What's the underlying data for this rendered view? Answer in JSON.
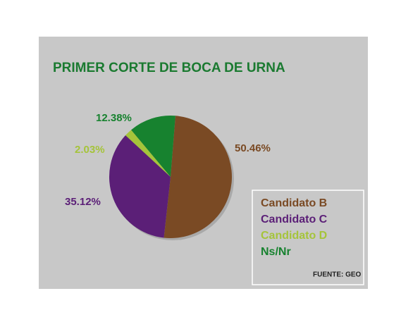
{
  "chart_data": {
    "type": "pie",
    "title": "PRIMER CORTE DE BOCA DE URNA",
    "categories": [
      "Candidato B",
      "Candidato C",
      "Candidato D",
      "Ns/Nr"
    ],
    "values": [
      50.46,
      35.12,
      2.03,
      12.38
    ],
    "value_labels": [
      "50.46%",
      "35.12%",
      "2.03%",
      "12.38%"
    ],
    "colors": [
      "#7a4a24",
      "#5b1f77",
      "#a5c43a",
      "#17822f"
    ],
    "source": "FUENTE: GEO"
  }
}
